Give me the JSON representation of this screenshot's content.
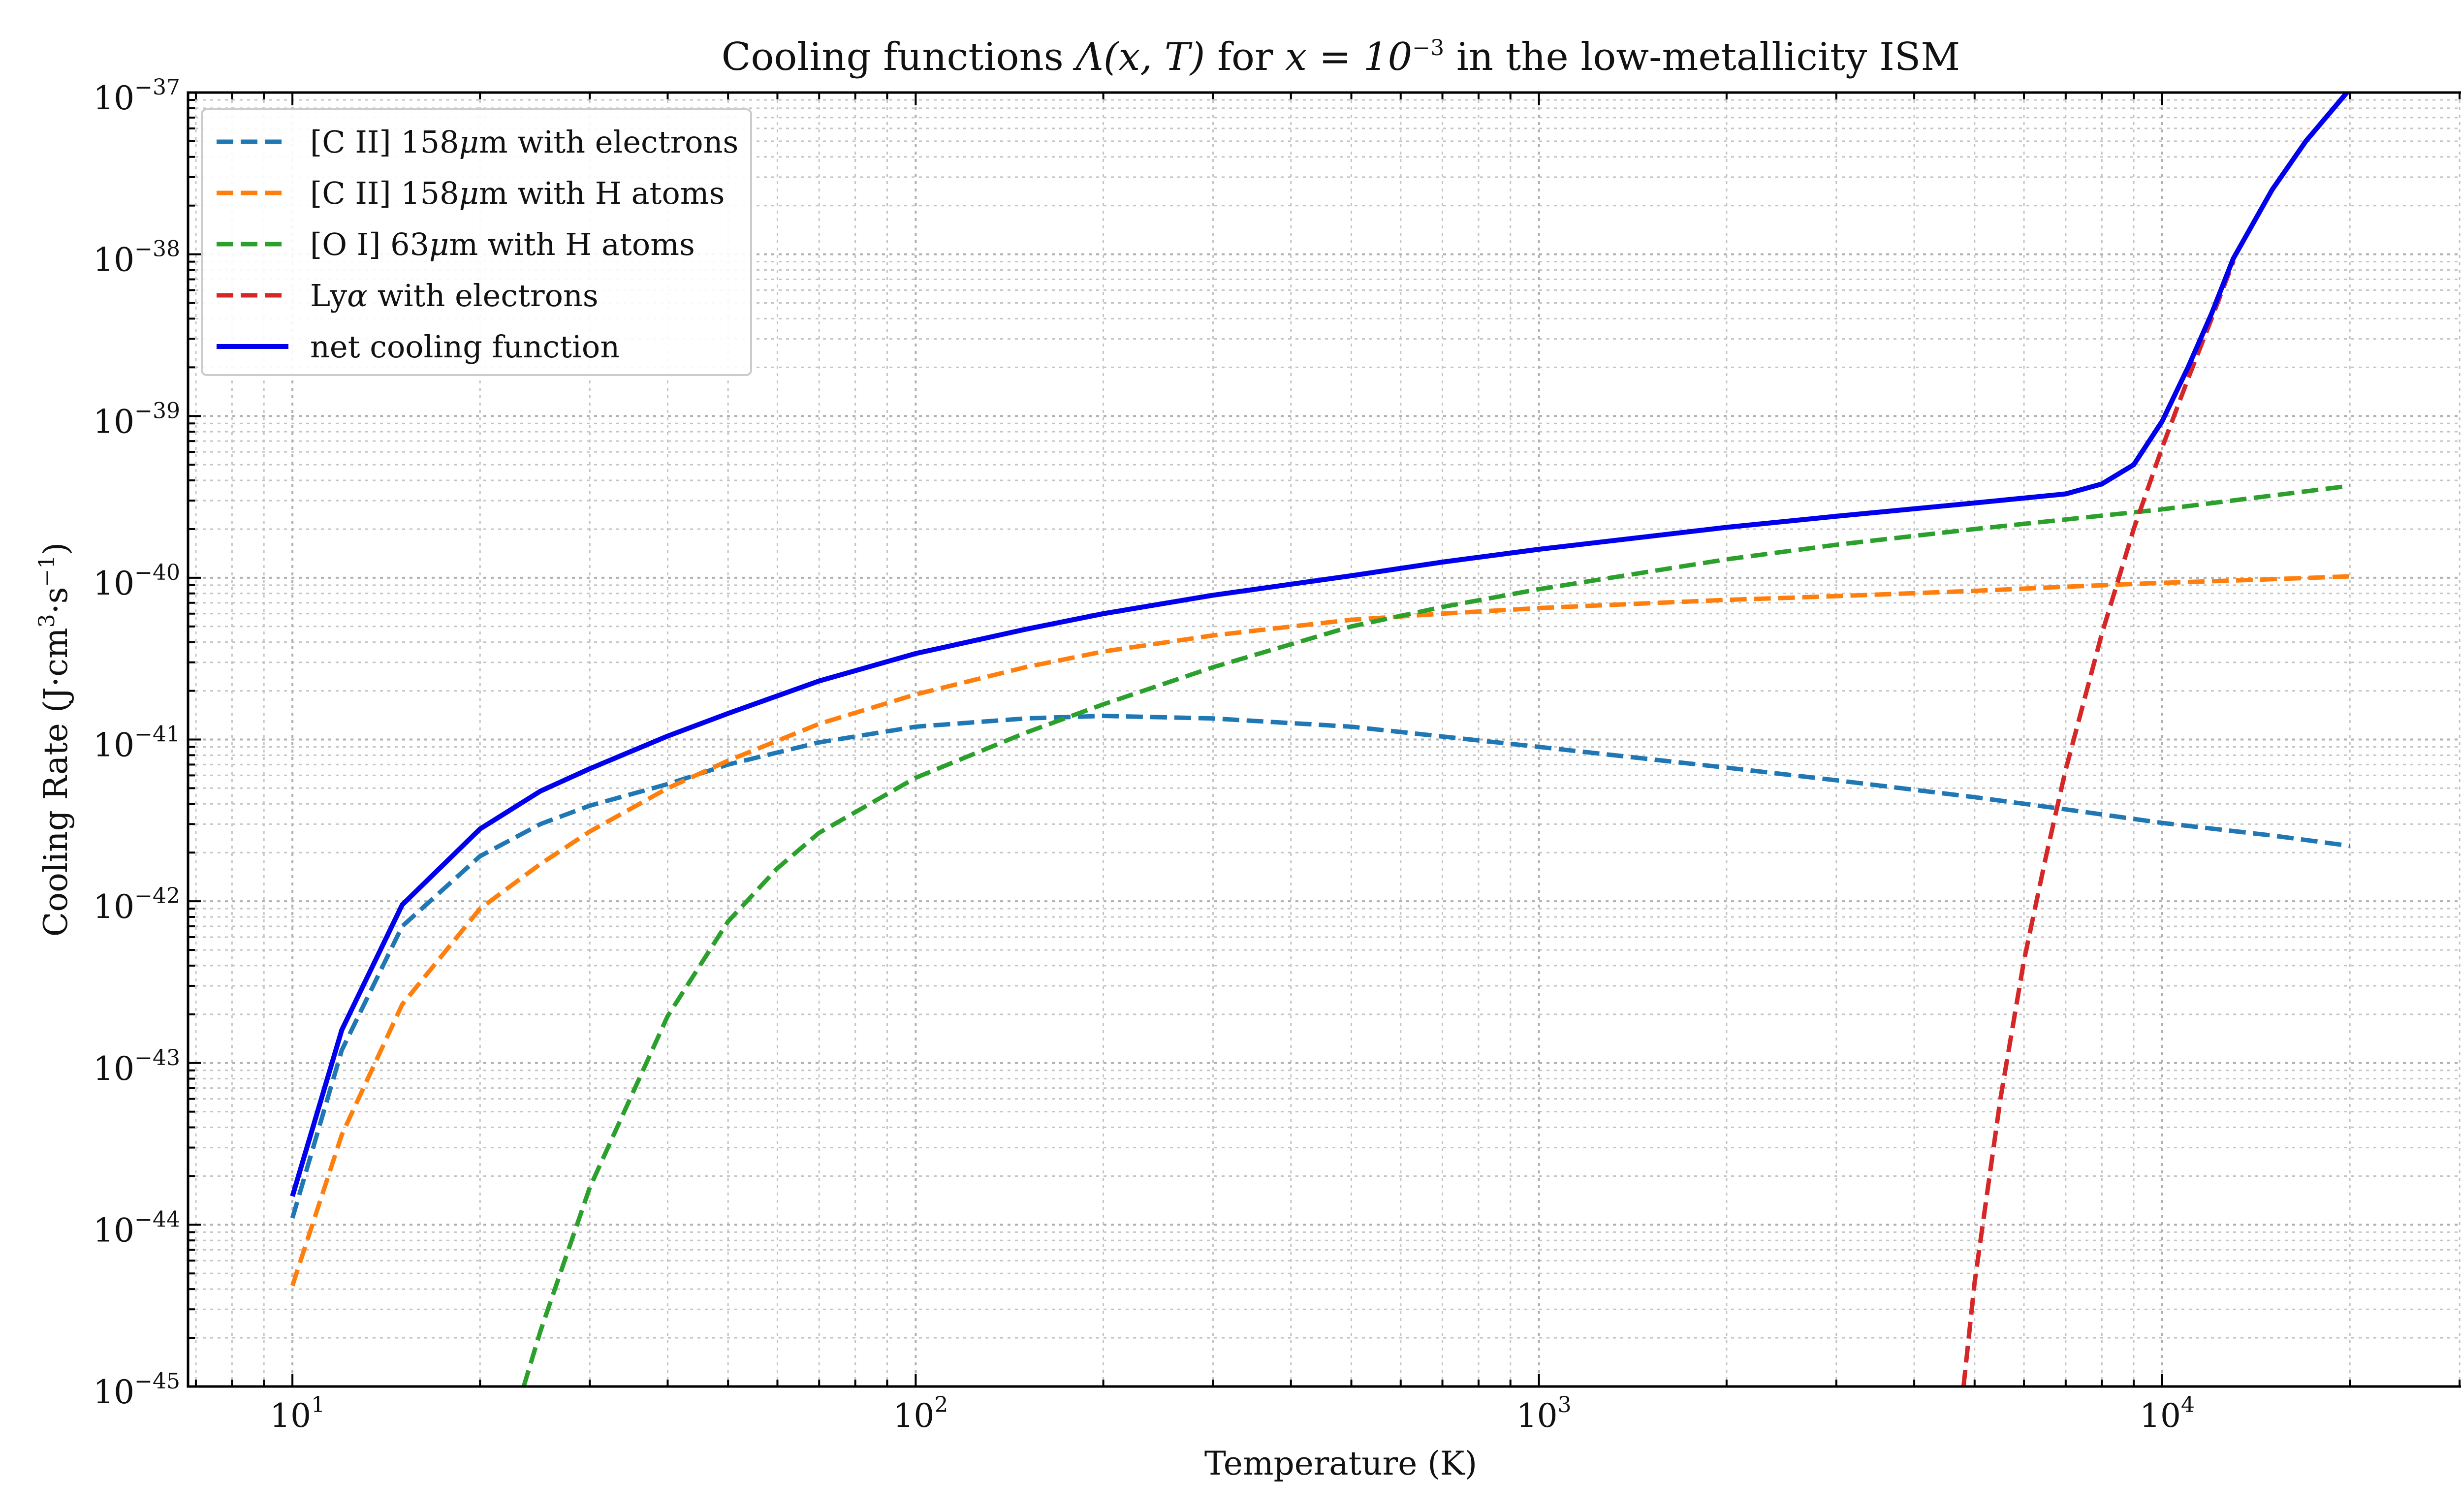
{
  "chart_data": {
    "type": "line",
    "title": "Cooling functions Λ(x,T) for x = 10⁻³ in the low-metallicity ISM",
    "title_parts": {
      "prefix": "Cooling functions ",
      "func": "Λ(x, T)",
      "mid": " for ",
      "eq": "x = 10",
      "exp": "−3",
      "suffix": " in the low-metallicity ISM"
    },
    "xlabel": "Temperature (K)",
    "ylabel": "Cooling Rate (J·cm³·s⁻¹)",
    "ylabel_parts": {
      "a": "Cooling Rate (J·cm",
      "b": "3",
      "c": "·s",
      "d": "−1",
      "e": ")"
    },
    "xscale": "log",
    "yscale": "log",
    "xlim": [
      6.8,
      34000
    ],
    "ylim": [
      1e-45,
      1e-37
    ],
    "grid": "major and minor, dotted",
    "legend_position": "top-left",
    "x_ticks": [
      {
        "base": "10",
        "exp": "1",
        "value": 10
      },
      {
        "base": "10",
        "exp": "2",
        "value": 100
      },
      {
        "base": "10",
        "exp": "3",
        "value": 1000
      },
      {
        "base": "10",
        "exp": "4",
        "value": 10000
      }
    ],
    "y_ticks": [
      {
        "base": "10",
        "exp": "−37",
        "value": 1e-37
      },
      {
        "base": "10",
        "exp": "−38",
        "value": 1e-38
      },
      {
        "base": "10",
        "exp": "−39",
        "value": 1e-39
      },
      {
        "base": "10",
        "exp": "−40",
        "value": 1e-40
      },
      {
        "base": "10",
        "exp": "−41",
        "value": 1e-41
      },
      {
        "base": "10",
        "exp": "−42",
        "value": 1e-42
      },
      {
        "base": "10",
        "exp": "−43",
        "value": 1e-43
      },
      {
        "base": "10",
        "exp": "−44",
        "value": 1e-44
      },
      {
        "base": "10",
        "exp": "−45",
        "value": 1e-45
      }
    ],
    "series": [
      {
        "name": "[C II] 158μm with electrons",
        "label_parts": [
          "[C II] 158",
          "μ",
          "m with electrons"
        ],
        "color": "#1f77b4",
        "style": "dashed",
        "x": [
          10,
          12,
          15,
          20,
          25,
          30,
          40,
          50,
          70,
          100,
          150,
          200,
          300,
          500,
          1000,
          2000,
          3000,
          5000,
          7000,
          10000,
          15000,
          20000
        ],
        "y": [
          1.1e-44,
          1.2e-43,
          7e-43,
          1.9e-42,
          3e-42,
          3.9e-42,
          5.3e-42,
          7e-42,
          9.6e-42,
          1.2e-41,
          1.35e-41,
          1.4e-41,
          1.35e-41,
          1.2e-41,
          9e-42,
          6.7e-42,
          5.6e-42,
          4.4e-42,
          3.7e-42,
          3.05e-42,
          2.55e-42,
          2.2e-42
        ]
      },
      {
        "name": "[C II] 158μm with H atoms",
        "label_parts": [
          "[C II] 158",
          "μ",
          "m with H atoms"
        ],
        "color": "#ff7f0e",
        "style": "dashed",
        "x": [
          10,
          12,
          15,
          20,
          25,
          30,
          40,
          50,
          70,
          100,
          150,
          200,
          300,
          500,
          700,
          1000,
          2000,
          3000,
          5000,
          7000,
          10000,
          15000,
          20000
        ],
        "y": [
          4.2e-45,
          3.6e-44,
          2.3e-43,
          9e-43,
          1.7e-42,
          2.7e-42,
          5e-42,
          7.4e-42,
          1.25e-41,
          1.9e-41,
          2.8e-41,
          3.5e-41,
          4.4e-41,
          5.5e-41,
          6e-41,
          6.5e-41,
          7.3e-41,
          7.7e-41,
          8.3e-41,
          8.8e-41,
          9.3e-41,
          9.8e-41,
          1.02e-40
        ]
      },
      {
        "name": "[O I] 63μm with H atoms",
        "label_parts": [
          "[O I] 63",
          "μ",
          "m with H atoms"
        ],
        "color": "#2ca02c",
        "style": "dashed",
        "x": [
          23.5,
          25,
          30,
          40,
          50,
          60,
          70,
          100,
          150,
          200,
          300,
          500,
          700,
          1000,
          2000,
          3000,
          5000,
          10000,
          20000
        ],
        "y": [
          1e-45,
          2.2e-45,
          1.7e-44,
          1.95e-43,
          7.5e-43,
          1.6e-42,
          2.65e-42,
          5.8e-42,
          1.1e-41,
          1.65e-41,
          2.8e-41,
          5e-41,
          6.6e-41,
          8.5e-41,
          1.3e-40,
          1.6e-40,
          2e-40,
          2.65e-40,
          3.7e-40
        ]
      },
      {
        "name": "Lyα with electrons",
        "label_parts": [
          "Ly",
          "α",
          " with electrons"
        ],
        "color": "#d62728",
        "style": "dashed",
        "x": [
          4800,
          5000,
          5500,
          6000,
          6500,
          7000,
          8000,
          9000,
          10000,
          11000,
          12000,
          13000
        ],
        "y": [
          1e-45,
          4.4e-45,
          6e-44,
          4.3e-43,
          1.85e-42,
          6.5e-42,
          4.5e-41,
          2e-40,
          6.4e-40,
          1.7e-39,
          4e-39,
          9e-39
        ]
      },
      {
        "name": "net cooling function",
        "label_parts": [
          "net cooling function",
          "",
          ""
        ],
        "color": "#0000ee",
        "style": "solid",
        "x": [
          10,
          12,
          15,
          20,
          25,
          30,
          40,
          50,
          70,
          100,
          150,
          200,
          300,
          500,
          700,
          1000,
          2000,
          3000,
          5000,
          7000,
          8000,
          9000,
          10000,
          11000,
          12000,
          13000,
          15000,
          17000,
          20000
        ],
        "y": [
          1.5e-44,
          1.6e-43,
          9.5e-43,
          2.8e-42,
          4.8e-42,
          6.6e-42,
          1.05e-41,
          1.45e-41,
          2.3e-41,
          3.4e-41,
          4.8e-41,
          6e-41,
          7.8e-41,
          1.03e-40,
          1.25e-40,
          1.5e-40,
          2.05e-40,
          2.4e-40,
          2.9e-40,
          3.3e-40,
          3.8e-40,
          5e-40,
          9.3e-40,
          2e-39,
          4.3e-39,
          9.4e-39,
          2.5e-38,
          5e-38,
          1.05e-37
        ]
      }
    ]
  }
}
